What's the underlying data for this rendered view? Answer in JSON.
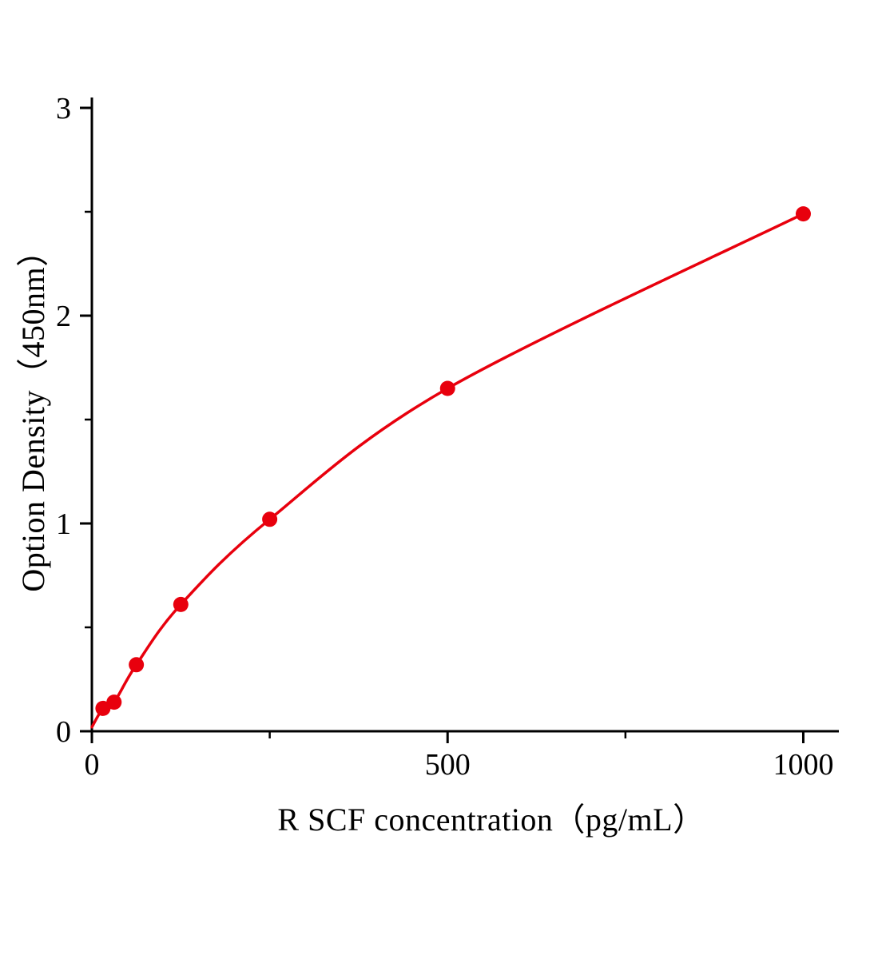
{
  "chart_data": {
    "type": "scatter",
    "title": "",
    "xlabel": "R SCF  concentration（pg/mL）",
    "ylabel": "Option Density（450nm）",
    "x": [
      0,
      15.6,
      31.2,
      62.5,
      125,
      250,
      500,
      1000
    ],
    "y": [
      0.02,
      0.11,
      0.14,
      0.32,
      0.61,
      1.02,
      1.65,
      2.49
    ],
    "xlim": [
      0,
      1050
    ],
    "ylim": [
      0,
      3.05
    ],
    "x_major_ticks": [
      0,
      500,
      1000
    ],
    "x_minor_ticks": [
      250,
      750
    ],
    "y_major_ticks": [
      0,
      1,
      2,
      3
    ],
    "y_minor_ticks": [
      0.5,
      1.5,
      2.5
    ],
    "show_origin_marker": false,
    "marker": "circle",
    "marker_size": 9.5,
    "line_width": 3.5,
    "axis_width": 3,
    "line_color": "#e8000d",
    "marker_color": "#e8000d",
    "axis_color": "#000000",
    "tick_label_color": "#000000",
    "background_color": "#ffffff",
    "grid": false,
    "legend": null
  }
}
